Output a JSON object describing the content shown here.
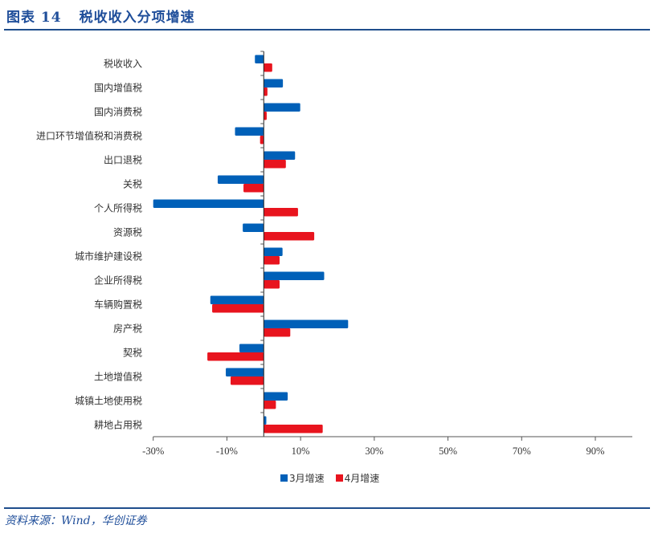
{
  "header": {
    "figure_number": "图表 14",
    "title": "税收收入分项增速"
  },
  "footer": {
    "source": "资料来源：Wind，华创证券"
  },
  "colors": {
    "series_march": "#0060B8",
    "series_april": "#E8141E",
    "rule": "#1F4E8C",
    "title": "#1F4E9A"
  },
  "legend": {
    "items": [
      {
        "label": "3月增速",
        "color": "#0060B8"
      },
      {
        "label": "4月增速",
        "color": "#E8141E"
      }
    ]
  },
  "chart_data": {
    "type": "bar",
    "orientation": "horizontal",
    "title": "税收收入分项增速",
    "xlabel": "",
    "ylabel": "",
    "xlim": [
      -30,
      100
    ],
    "x_ticks": [
      "-30%",
      "-10%",
      "10%",
      "30%",
      "50%",
      "70%",
      "90%"
    ],
    "x_tick_values": [
      -30,
      -10,
      10,
      30,
      50,
      70,
      90
    ],
    "grid": false,
    "legend_position": "bottom",
    "categories": [
      "税收收入",
      "国内增值税",
      "国内消费税",
      "进口环节增值税和消费税",
      "出口退税",
      "关税",
      "个人所得税",
      "资源税",
      "城市维护建设税",
      "企业所得税",
      "车辆购置税",
      "房产税",
      "契税",
      "土地增值税",
      "城镇土地使用税",
      "耕地占用税"
    ],
    "series": [
      {
        "name": "3月增速",
        "values": [
          -2.4,
          5.2,
          9.9,
          -7.8,
          8.5,
          -12.5,
          -30.0,
          -5.7,
          5.1,
          16.4,
          -14.5,
          22.9,
          -6.6,
          -10.3,
          6.5,
          0.7
        ]
      },
      {
        "name": "4月增速",
        "values": [
          2.3,
          1.0,
          0.8,
          -1.0,
          6.0,
          -5.5,
          9.3,
          13.7,
          4.3,
          4.3,
          -14.0,
          7.2,
          -15.3,
          -9.0,
          3.3,
          16.0
        ]
      }
    ],
    "notes": "个人所得税 3月增速 bar is clipped at the -30% axis minimum"
  }
}
